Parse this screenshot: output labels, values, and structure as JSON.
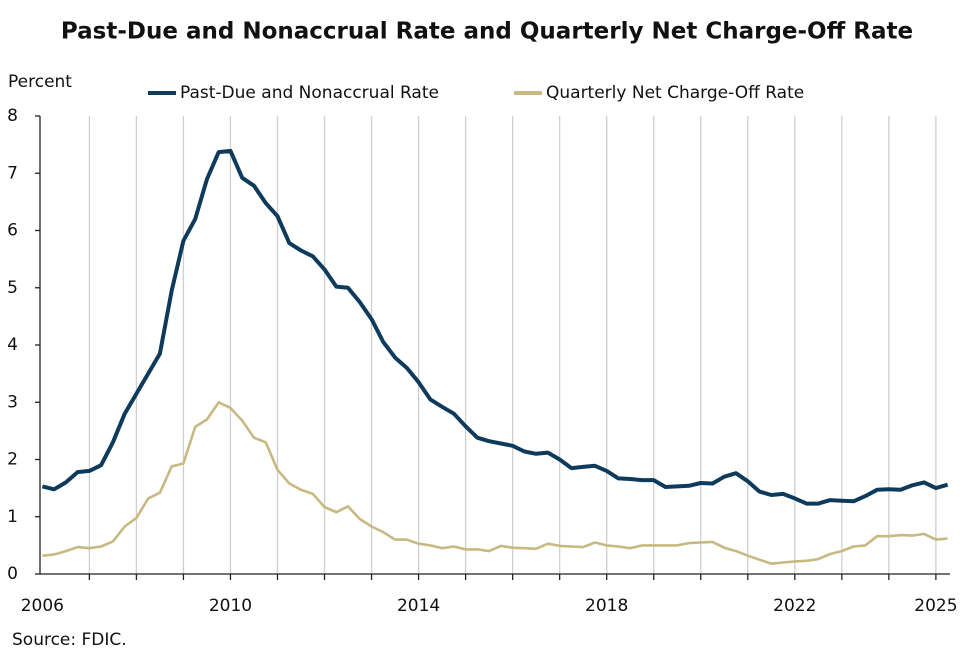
{
  "chart_data": {
    "type": "line",
    "title": "Past-Due and Nonaccrual Rate and Quarterly Net Charge-Off Rate",
    "y_label": "Percent",
    "source": "Source: FDIC.",
    "x": [
      2006,
      2006.25,
      2006.5,
      2006.75,
      2007,
      2007.25,
      2007.5,
      2007.75,
      2008,
      2008.25,
      2008.5,
      2008.75,
      2009,
      2009.25,
      2009.5,
      2009.75,
      2010,
      2010.25,
      2010.5,
      2010.75,
      2011,
      2011.25,
      2011.5,
      2011.75,
      2012,
      2012.25,
      2012.5,
      2012.75,
      2013,
      2013.25,
      2013.5,
      2013.75,
      2014,
      2014.25,
      2014.5,
      2014.75,
      2015,
      2015.25,
      2015.5,
      2015.75,
      2016,
      2016.25,
      2016.5,
      2016.75,
      2017,
      2017.25,
      2017.5,
      2017.75,
      2018,
      2018.25,
      2018.5,
      2018.75,
      2019,
      2019.25,
      2019.5,
      2019.75,
      2020,
      2020.25,
      2020.5,
      2020.75,
      2021,
      2021.25,
      2021.5,
      2021.75,
      2022,
      2022.25,
      2022.5,
      2022.75,
      2023,
      2023.25,
      2023.5,
      2023.75,
      2024,
      2024.25,
      2024.5,
      2024.75,
      2025,
      2025.25
    ],
    "series": [
      {
        "name": "Past-Due and Nonaccrual Rate",
        "color": "#0e3a5c",
        "values": [
          1.53,
          1.48,
          1.6,
          1.78,
          1.8,
          1.9,
          2.3,
          2.8,
          3.15,
          3.5,
          3.85,
          4.95,
          5.82,
          6.2,
          6.9,
          7.37,
          7.39,
          6.92,
          6.78,
          6.48,
          6.25,
          5.78,
          5.65,
          5.55,
          5.32,
          5.02,
          5.0,
          4.75,
          4.45,
          4.05,
          3.78,
          3.6,
          3.35,
          3.05,
          2.92,
          2.8,
          2.58,
          2.38,
          2.32,
          2.28,
          2.24,
          2.14,
          2.1,
          2.12,
          2.0,
          1.85,
          1.87,
          1.89,
          1.8,
          1.67,
          1.66,
          1.64,
          1.64,
          1.52,
          1.53,
          1.54,
          1.59,
          1.58,
          1.7,
          1.76,
          1.62,
          1.44,
          1.38,
          1.4,
          1.32,
          1.23,
          1.23,
          1.29,
          1.28,
          1.27,
          1.36,
          1.47,
          1.48,
          1.47,
          1.55,
          1.6,
          1.5,
          1.56
        ]
      },
      {
        "name": "Quarterly Net Charge-Off Rate",
        "color": "#c8b882",
        "values": [
          0.32,
          0.34,
          0.4,
          0.47,
          0.45,
          0.48,
          0.57,
          0.83,
          0.98,
          1.32,
          1.42,
          1.88,
          1.93,
          2.57,
          2.7,
          3.0,
          2.9,
          2.68,
          2.38,
          2.3,
          1.82,
          1.58,
          1.47,
          1.4,
          1.17,
          1.08,
          1.18,
          0.96,
          0.83,
          0.73,
          0.6,
          0.6,
          0.53,
          0.5,
          0.45,
          0.48,
          0.43,
          0.43,
          0.4,
          0.49,
          0.46,
          0.45,
          0.44,
          0.53,
          0.49,
          0.48,
          0.47,
          0.55,
          0.5,
          0.48,
          0.45,
          0.5,
          0.5,
          0.5,
          0.5,
          0.54,
          0.55,
          0.56,
          0.46,
          0.4,
          0.32,
          0.25,
          0.18,
          0.2,
          0.22,
          0.23,
          0.26,
          0.35,
          0.4,
          0.48,
          0.5,
          0.66,
          0.66,
          0.68,
          0.67,
          0.7,
          0.6,
          0.62
        ]
      }
    ],
    "xlim": [
      2005.95,
      2025.3
    ],
    "xticks": [
      2006,
      2010,
      2014,
      2018,
      2022,
      2025
    ],
    "xgrid": [
      2007,
      2008,
      2009,
      2010,
      2011,
      2012,
      2013,
      2014,
      2015,
      2016,
      2017,
      2018,
      2019,
      2020,
      2021,
      2022,
      2023,
      2024,
      2025
    ],
    "ylim": [
      0,
      8
    ],
    "yticks": [
      0,
      1,
      2,
      3,
      4,
      5,
      6,
      7,
      8
    ],
    "legend": "top"
  }
}
